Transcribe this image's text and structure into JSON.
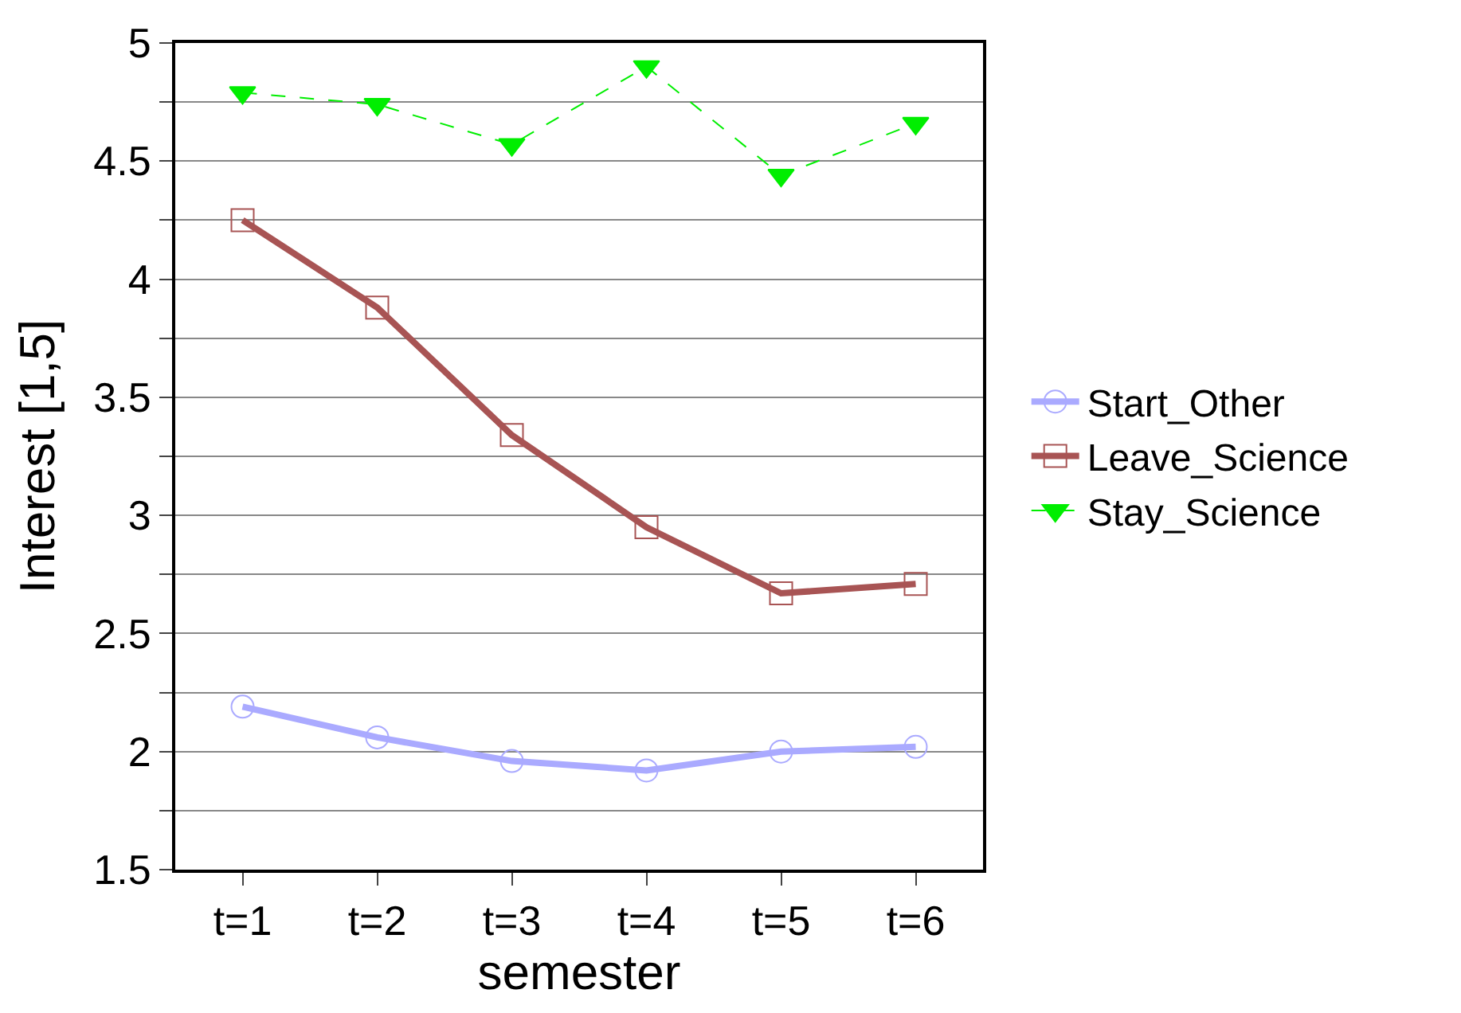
{
  "chart_data": {
    "type": "line",
    "xlabel": "semester",
    "ylabel": "Interest [1,5]",
    "categories": [
      "t=1",
      "t=2",
      "t=3",
      "t=4",
      "t=5",
      "t=6"
    ],
    "series": [
      {
        "name": "Start_Other",
        "color": "#aaaaff",
        "marker": "circle",
        "line_style": "solid",
        "values": [
          2.19,
          2.06,
          1.96,
          1.92,
          2.0,
          2.02
        ]
      },
      {
        "name": "Leave_Science",
        "color": "#a85454",
        "marker": "square",
        "line_style": "solid",
        "values": [
          4.25,
          3.88,
          3.34,
          2.95,
          2.67,
          2.71
        ]
      },
      {
        "name": "Stay_Science",
        "color": "#00ee00",
        "marker": "triangle",
        "line_style": "dashed",
        "values": [
          4.79,
          4.74,
          4.57,
          4.9,
          4.44,
          4.66
        ]
      }
    ],
    "ylim": [
      1.5,
      5
    ],
    "yticks": [
      1.5,
      {
        "value": 1.75,
        "label": null
      },
      2,
      {
        "value": 2.25,
        "label": null
      },
      2.5,
      {
        "value": 2.75,
        "label": null
      },
      3,
      {
        "value": 3.25,
        "label": null
      },
      3.5,
      {
        "value": 3.75,
        "label": null
      },
      4,
      {
        "value": 4.25,
        "label": null
      },
      4.5,
      {
        "value": 4.75,
        "label": null
      },
      5
    ],
    "grid": "y",
    "legend": "right"
  }
}
